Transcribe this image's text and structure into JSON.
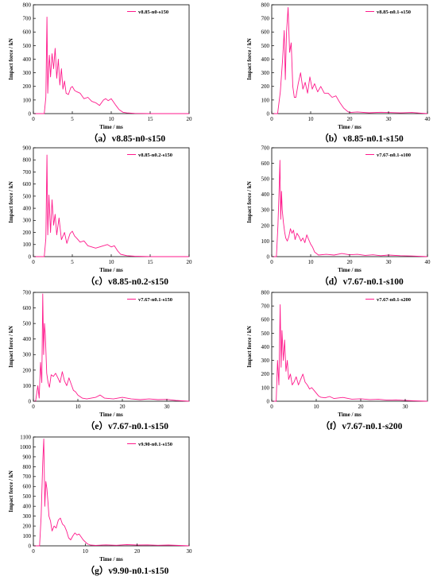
{
  "theme": {
    "series_color": "#ff1a8c",
    "axis_color": "#000000"
  },
  "chart_data": [
    {
      "type": "line",
      "caption": "（a）v8.85-n0-s150",
      "legend": "v8.85-n0-s150",
      "legend_position": "top-right",
      "xlabel": "Time / ms",
      "ylabel": "Impact force / kN",
      "xlim": [
        0,
        20
      ],
      "ylim": [
        0,
        800
      ],
      "xticks": [
        0,
        5,
        10,
        15,
        20
      ],
      "yticks": [
        0,
        100,
        200,
        300,
        400,
        500,
        600,
        700,
        800
      ],
      "series": [
        {
          "x": [
            0,
            1.4,
            1.6,
            1.75,
            1.85,
            1.95,
            2.05,
            2.2,
            2.4,
            2.6,
            2.8,
            3.0,
            3.2,
            3.4,
            3.6,
            3.8,
            4.0,
            4.2,
            4.5,
            4.8,
            5.0,
            5.3,
            5.6,
            6.0,
            6.5,
            7.0,
            7.5,
            8.0,
            8.5,
            9.0,
            9.3,
            9.6,
            10.0,
            10.3,
            10.6,
            11.0,
            11.5,
            12,
            13,
            15,
            20
          ],
          "y": [
            0,
            0,
            120,
            710,
            150,
            320,
            430,
            270,
            440,
            330,
            480,
            260,
            400,
            210,
            330,
            180,
            240,
            150,
            140,
            190,
            200,
            170,
            160,
            150,
            110,
            120,
            90,
            80,
            60,
            100,
            110,
            95,
            110,
            85,
            60,
            30,
            10,
            5,
            2,
            0,
            0
          ]
        }
      ]
    },
    {
      "type": "line",
      "caption": "（b）v8.85-n0.1-s150",
      "legend": "v8.85-n0.1-s150",
      "legend_position": "top-right",
      "xlabel": "Time / ms",
      "ylabel": "Impact force / kN",
      "xlim": [
        0,
        40
      ],
      "ylim": [
        0,
        800
      ],
      "xticks": [
        0,
        10,
        20,
        30,
        40
      ],
      "yticks": [
        0,
        100,
        200,
        300,
        400,
        500,
        600,
        700,
        800
      ],
      "series": [
        {
          "x": [
            0,
            1.5,
            2.2,
            2.8,
            3.2,
            3.5,
            3.8,
            4.2,
            4.6,
            5.0,
            5.4,
            5.8,
            6.2,
            6.8,
            7.4,
            8.0,
            8.6,
            9.2,
            9.8,
            10.4,
            11.0,
            11.8,
            12.6,
            13.5,
            14.5,
            15.5,
            16.5,
            17.5,
            18.5,
            19.5,
            20,
            22,
            25,
            28,
            30,
            33,
            36,
            38,
            40
          ],
          "y": [
            0,
            0,
            160,
            400,
            610,
            250,
            600,
            780,
            450,
            520,
            200,
            120,
            120,
            220,
            300,
            180,
            230,
            150,
            270,
            180,
            220,
            160,
            200,
            150,
            150,
            120,
            130,
            80,
            40,
            15,
            8,
            12,
            6,
            10,
            8,
            5,
            8,
            4,
            0
          ]
        }
      ]
    },
    {
      "type": "line",
      "caption": "（c）v8.85-n0.2-s150",
      "legend": "v8.85-n0.2-s150",
      "legend_position": "top-right",
      "xlabel": "Time / ms",
      "ylabel": "Impact force / kN",
      "xlim": [
        0,
        20
      ],
      "ylim": [
        0,
        900
      ],
      "xticks": [
        0,
        5,
        10,
        15,
        20
      ],
      "yticks": [
        0,
        100,
        200,
        300,
        400,
        500,
        600,
        700,
        800,
        900
      ],
      "series": [
        {
          "x": [
            0,
            1.4,
            1.6,
            1.75,
            1.85,
            2.0,
            2.2,
            2.4,
            2.6,
            2.8,
            3.0,
            3.3,
            3.6,
            4.0,
            4.3,
            4.7,
            5.0,
            5.3,
            5.6,
            6.0,
            6.5,
            7.0,
            7.5,
            8.0,
            8.5,
            9.0,
            9.5,
            10.0,
            10.4,
            10.8,
            11.2,
            12,
            13,
            15,
            20
          ],
          "y": [
            0,
            0,
            150,
            840,
            180,
            510,
            200,
            470,
            260,
            350,
            180,
            320,
            140,
            200,
            110,
            190,
            210,
            170,
            150,
            120,
            130,
            90,
            80,
            70,
            80,
            90,
            100,
            80,
            90,
            50,
            20,
            8,
            3,
            0,
            0
          ]
        }
      ]
    },
    {
      "type": "line",
      "caption": "（d）v7.67-n0.1-s100",
      "legend": "v7.67-n0.1-s100",
      "legend_position": "top-right",
      "xlabel": "Time / ms",
      "ylabel": "Impact force / kN",
      "xlim": [
        0,
        40
      ],
      "ylim": [
        0,
        700
      ],
      "xticks": [
        0,
        10,
        20,
        30,
        40
      ],
      "yticks": [
        0,
        100,
        200,
        300,
        400,
        500,
        600,
        700
      ],
      "series": [
        {
          "x": [
            0,
            1.2,
            1.6,
            1.9,
            2.1,
            2.3,
            2.5,
            2.7,
            3.0,
            3.3,
            3.6,
            4.0,
            4.4,
            4.8,
            5.2,
            5.6,
            6.0,
            6.5,
            7.0,
            7.5,
            8.0,
            8.5,
            9.0,
            9.5,
            10.0,
            10.5,
            11,
            12,
            14,
            16,
            18,
            20,
            22,
            24,
            26,
            28,
            30,
            33,
            36,
            40
          ],
          "y": [
            0,
            0,
            200,
            430,
            620,
            240,
            420,
            300,
            220,
            160,
            120,
            100,
            130,
            180,
            150,
            170,
            110,
            150,
            130,
            100,
            120,
            90,
            140,
            110,
            80,
            60,
            30,
            10,
            15,
            10,
            20,
            12,
            15,
            8,
            12,
            6,
            10,
            6,
            4,
            0
          ]
        }
      ]
    },
    {
      "type": "line",
      "caption": "（e）v7.67-n0.1-s150",
      "legend": "v7.67-n0.1-s150",
      "legend_position": "top-right",
      "xlabel": "Time / ms",
      "ylabel": "Impact force / kN",
      "xlim": [
        0,
        35
      ],
      "ylim": [
        0,
        700
      ],
      "xticks": [
        0,
        10,
        20,
        30
      ],
      "yticks": [
        0,
        100,
        200,
        300,
        400,
        500,
        600,
        700
      ],
      "series": [
        {
          "x": [
            0,
            0.5,
            1.0,
            1.3,
            1.6,
            1.9,
            2.1,
            2.3,
            2.5,
            2.7,
            3.0,
            3.3,
            3.6,
            4.0,
            4.5,
            5.0,
            5.5,
            6.0,
            6.5,
            7.0,
            7.5,
            8.0,
            8.5,
            9.0,
            9.5,
            10,
            11,
            12,
            13,
            14,
            15,
            16,
            18,
            20,
            22,
            24,
            26,
            28,
            30,
            32,
            35
          ],
          "y": [
            0,
            0,
            100,
            20,
            250,
            120,
            690,
            300,
            500,
            420,
            180,
            120,
            90,
            170,
            160,
            180,
            150,
            120,
            190,
            130,
            100,
            150,
            110,
            70,
            60,
            40,
            20,
            15,
            20,
            25,
            40,
            20,
            15,
            25,
            15,
            10,
            15,
            10,
            12,
            5,
            0
          ]
        }
      ]
    },
    {
      "type": "line",
      "caption": "（f）v7.67-n0.1-s200",
      "legend": "v7.67-n0.1-s200",
      "legend_position": "top-right",
      "xlabel": "Time / ms",
      "ylabel": "Impact force / kN",
      "xlim": [
        0,
        35
      ],
      "ylim": [
        0,
        800
      ],
      "xticks": [
        0,
        10,
        20,
        30
      ],
      "yticks": [
        0,
        100,
        200,
        300,
        400,
        500,
        600,
        700,
        800
      ],
      "series": [
        {
          "x": [
            0,
            1.0,
            1.3,
            1.6,
            1.9,
            2.1,
            2.3,
            2.6,
            2.9,
            3.2,
            3.5,
            3.8,
            4.2,
            4.6,
            5.0,
            5.5,
            6.0,
            6.5,
            7.0,
            7.5,
            8.0,
            8.5,
            9.0,
            9.5,
            10,
            10.5,
            11,
            12,
            13,
            14,
            16,
            18,
            20,
            22,
            24,
            26,
            28,
            30,
            32,
            35
          ],
          "y": [
            0,
            0,
            300,
            120,
            710,
            250,
            520,
            300,
            450,
            220,
            300,
            160,
            200,
            120,
            140,
            180,
            120,
            160,
            200,
            140,
            120,
            90,
            100,
            80,
            60,
            40,
            30,
            25,
            35,
            20,
            28,
            15,
            18,
            12,
            14,
            8,
            10,
            6,
            3,
            0
          ]
        }
      ]
    },
    {
      "type": "line",
      "caption": "（g）v9.90-n0.1-s150",
      "legend": "v9.90-n0.1-s150",
      "legend_position": "top-right",
      "xlabel": "Time / ms",
      "ylabel": "Impact force / kN",
      "xlim": [
        0,
        30
      ],
      "ylim": [
        0,
        1100
      ],
      "xticks": [
        0,
        10,
        20,
        30
      ],
      "yticks": [
        0,
        100,
        200,
        300,
        400,
        500,
        600,
        700,
        800,
        900,
        1000,
        1100
      ],
      "series": [
        {
          "x": [
            0,
            1.2,
            1.5,
            1.8,
            2.0,
            2.2,
            2.4,
            2.6,
            2.8,
            3.0,
            3.3,
            3.6,
            4.0,
            4.4,
            4.8,
            5.2,
            5.6,
            6.0,
            6.4,
            6.8,
            7.2,
            7.6,
            8.0,
            8.4,
            8.8,
            9.2,
            9.6,
            10.0,
            10.4,
            11,
            12,
            14,
            16,
            18,
            20,
            22,
            24,
            26,
            28,
            30
          ],
          "y": [
            0,
            0,
            300,
            850,
            1080,
            400,
            650,
            580,
            450,
            300,
            250,
            150,
            200,
            180,
            260,
            280,
            220,
            200,
            150,
            80,
            60,
            100,
            130,
            110,
            120,
            90,
            60,
            40,
            20,
            8,
            5,
            10,
            6,
            12,
            8,
            10,
            6,
            8,
            4,
            0
          ]
        }
      ]
    }
  ]
}
